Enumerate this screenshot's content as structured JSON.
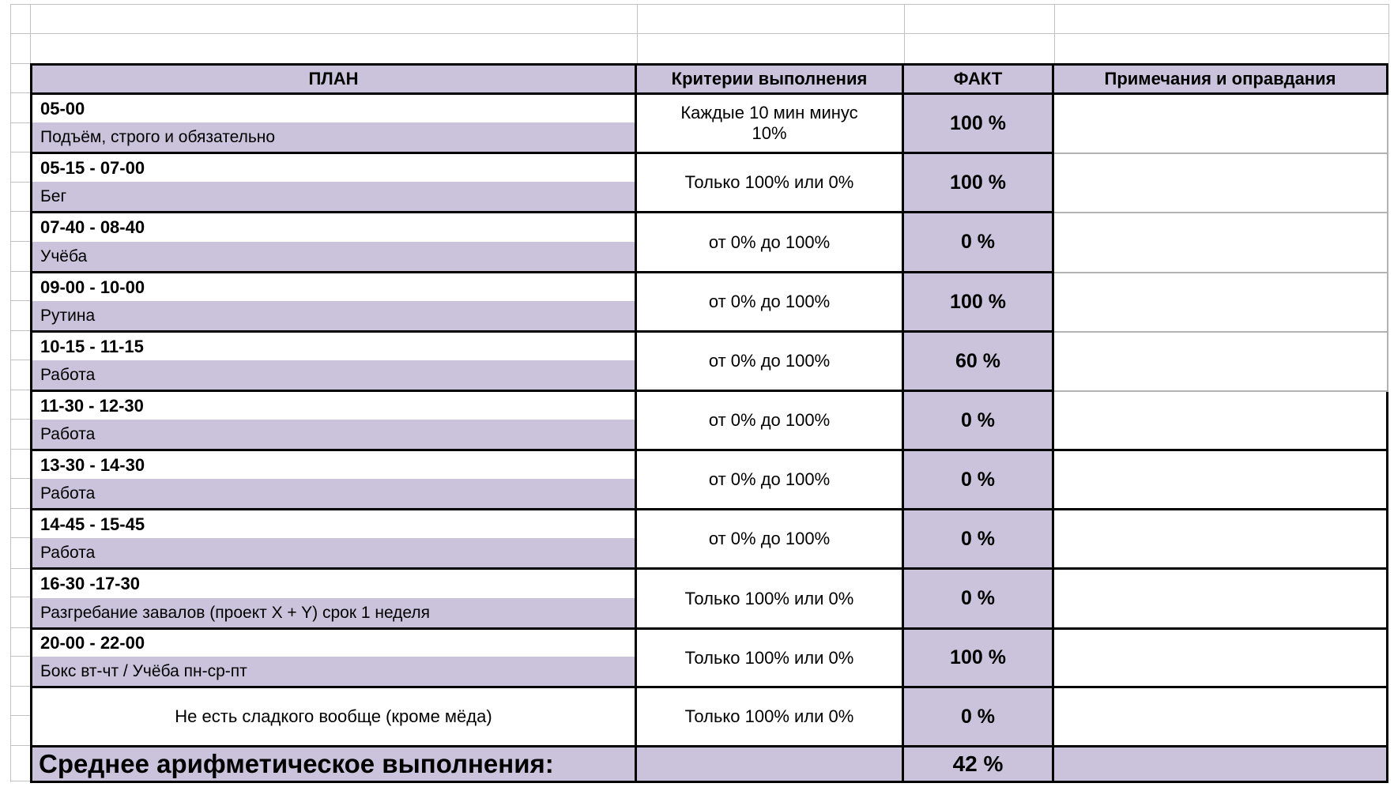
{
  "colors": {
    "purple_fill": "#CBC3DC",
    "black_border": "#000000",
    "gridline": "#C2C2C2",
    "note_divider": "#B3B3B3"
  },
  "table": {
    "headers": [
      "ПЛАН",
      "Критерии выполнения",
      "ФАКТ",
      "Примечания и оправдания"
    ],
    "rows": [
      {
        "time": "05-00",
        "activity": "Подъём, строго и обязательно",
        "criteria": "Каждые 10 мин минус 10%",
        "fact": "100 %",
        "note": ""
      },
      {
        "time": "05-15 - 07-00",
        "activity": "Бег",
        "criteria": "Только 100% или 0%",
        "fact": "100 %",
        "note": ""
      },
      {
        "time": "07-40 - 08-40",
        "activity": "Учёба",
        "criteria": "от 0% до 100%",
        "fact": "0 %",
        "note": ""
      },
      {
        "time": "09-00 - 10-00",
        "activity": "Рутина",
        "criteria": "от 0% до 100%",
        "fact": "100 %",
        "note": ""
      },
      {
        "time": "10-15 - 11-15",
        "activity": "Работа",
        "criteria": "от 0% до 100%",
        "fact": "60 %",
        "note": ""
      },
      {
        "time": "11-30 - 12-30",
        "activity": "Работа",
        "criteria": "от 0% до 100%",
        "fact": "0 %",
        "note": ""
      },
      {
        "time": "13-30 - 14-30",
        "activity": "Работа",
        "criteria": "от 0% до 100%",
        "fact": "0 %",
        "note": ""
      },
      {
        "time": "14-45 - 15-45",
        "activity": "Работа",
        "criteria": "от 0% до 100%",
        "fact": "0 %",
        "note": ""
      },
      {
        "time": "16-30 -17-30",
        "activity": "Разгребание завалов (проект X + Y) срок 1 неделя",
        "criteria": "Только 100% или 0%",
        "fact": "0 %",
        "note": ""
      },
      {
        "time": "20-00 - 22-00",
        "activity": "Бокс вт-чт / Учёба пн-ср-пт",
        "criteria": "Только 100% или 0%",
        "fact": "100 %",
        "note": ""
      },
      {
        "plan": "Не есть сладкого вообще (кроме мёда)",
        "criteria": "Только 100% или 0%",
        "fact": "0 %",
        "note": ""
      }
    ],
    "total": {
      "label": "Среднее арифметическое выполнения:",
      "fact": "42 %",
      "note": ""
    }
  }
}
